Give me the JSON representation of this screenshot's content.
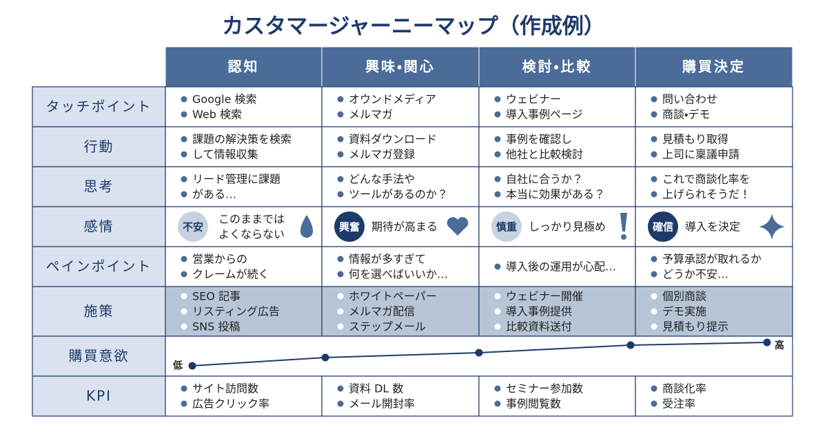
{
  "title": "カスタマージャーニーマップ（作成例）",
  "table": {
    "columns": [
      "認知",
      "興味・関心",
      "検討・比較",
      "購買決定"
    ],
    "rows": [
      {
        "label": "タッチポイント",
        "cells": [
          [
            "Google 検索",
            "Web 検索"
          ],
          [
            "オウンドメディア",
            "メルマガ"
          ],
          [
            "ウェビナー",
            "導入事例ページ"
          ],
          [
            "問い合わせ",
            "商談・デモ"
          ]
        ]
      },
      {
        "label": "行動",
        "cells": [
          [
            "課題の解決策を検索",
            "して情報収集"
          ],
          [
            "資料ダウンロード",
            "メルマガ登録"
          ],
          [
            "事例を確認し",
            "他社と比較検討"
          ],
          [
            "見積もり取得",
            "上司に稟議申請"
          ]
        ]
      },
      {
        "label": "思考",
        "cells": [
          [
            "リード管理に課題",
            "がある…"
          ],
          [
            "どんな手法や",
            "ツールがあるのか？"
          ],
          [
            "自社に合うか？",
            "本当に効果がある？"
          ],
          [
            "これで商談化率を",
            "上げられそうだ！"
          ]
        ]
      },
      {
        "label": "感情",
        "cells": [
          {
            "badge": "不安",
            "lines": [
              "このままでは",
              "よくならない"
            ]
          },
          {
            "badge": "興奮",
            "lines": [
              "期待が高まる"
            ]
          },
          {
            "badge": "慎重",
            "lines": [
              "しっかり見極め"
            ]
          },
          {
            "badge": "確信",
            "lines": [
              "導入を決定"
            ]
          }
        ]
      },
      {
        "label": "ペインポイント",
        "cells": [
          [
            "営業からの",
            "クレームが続く"
          ],
          [
            "情報が多すぎて",
            "何を選べばいいか…"
          ],
          [
            "導入後の運用が心配…"
          ],
          [
            "予算承認が取れるか",
            "どうか不安…"
          ]
        ]
      },
      {
        "label": "施策",
        "cells": [
          [
            "SEO 記事",
            "リスティング広告",
            "SNS 投稿"
          ],
          [
            "ホワイトペーパー",
            "メルマガ配信",
            "ステップメール"
          ],
          [
            "ウェビナー開催",
            "導入事例提供",
            "比較資料送付"
          ],
          [
            "個別商談",
            "デモ実施",
            "見積もり提示"
          ]
        ]
      },
      {
        "label": "購買意欲",
        "low": "低",
        "high": "高"
      },
      {
        "label": "KPI",
        "cells": [
          [
            "サイト訪問数",
            "広告クリック率"
          ],
          [
            "資料 DL 数",
            "メール開封率"
          ],
          [
            "セミナー参加数",
            "事例閲覧数"
          ],
          [
            "商談化率",
            "受注率"
          ]
        ]
      }
    ]
  }
}
